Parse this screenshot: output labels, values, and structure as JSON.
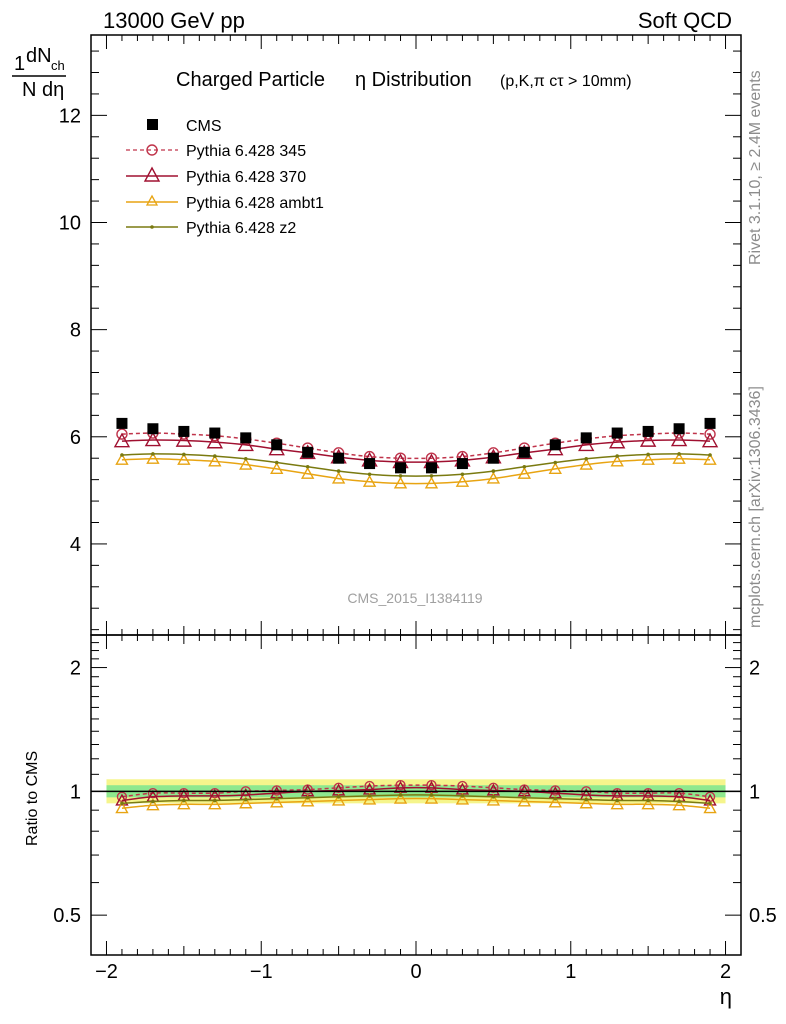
{
  "header": {
    "left": "13000 GeV pp",
    "right": "Soft QCD"
  },
  "side": {
    "rivet": "Rivet 3.1.10, ≥ 2.4M events",
    "mcplots": "mcplots.cern.ch [arXiv:1306.3436]"
  },
  "chart_data": {
    "type": "line",
    "title": "Charged Particle η Distribution",
    "title_main": "Charged Particle",
    "title_eta": "η Distribution",
    "title_note": "(p,K,π cτ > 10mm)",
    "watermark": "CMS_2015_I1384119",
    "ylabel_num": "dN",
    "ylabel_sub": "ch",
    "ylabel_den": "N dη",
    "ylabel_one": "1",
    "xlabel": "η",
    "ratio_ylabel": "Ratio to CMS",
    "xlim": [
      -2.1,
      2.1
    ],
    "ylim": [
      2.3,
      13.5
    ],
    "ratio_ylim": [
      0.4,
      2.4
    ],
    "x_ticks": [
      -2,
      -1,
      0,
      1,
      2
    ],
    "x_tick_labels": [
      "−2",
      "−1",
      "0",
      "1",
      "2"
    ],
    "y_ticks": [
      4,
      6,
      8,
      10,
      12
    ],
    "y_tick_labels": [
      "4",
      "6",
      "8",
      "10",
      "12"
    ],
    "ratio_ticks": [
      0.5,
      1,
      2
    ],
    "ratio_tick_labels": [
      "0.5",
      "1",
      "2"
    ],
    "x": [
      -1.9,
      -1.7,
      -1.5,
      -1.3,
      -1.1,
      -0.9,
      -0.7,
      -0.5,
      -0.3,
      -0.1,
      0.1,
      0.3,
      0.5,
      0.7,
      0.9,
      1.1,
      1.3,
      1.5,
      1.7,
      1.9
    ],
    "data": {
      "name": "CMS",
      "values": [
        6.25,
        6.15,
        6.1,
        6.07,
        5.98,
        5.85,
        5.71,
        5.6,
        5.5,
        5.42,
        5.42,
        5.5,
        5.6,
        5.71,
        5.85,
        5.98,
        6.07,
        6.1,
        6.15,
        6.25
      ]
    },
    "series": [
      {
        "name": "Pythia 6.428 345",
        "color": "#c0344b",
        "style": "dashed",
        "marker": "open-circle",
        "values": [
          6.05,
          6.07,
          6.05,
          6.02,
          5.96,
          5.88,
          5.79,
          5.7,
          5.63,
          5.6,
          5.6,
          5.63,
          5.7,
          5.79,
          5.88,
          5.96,
          6.02,
          6.05,
          6.07,
          6.05
        ],
        "ratio": [
          0.97,
          0.99,
          0.99,
          0.99,
          1.0,
          1.005,
          1.01,
          1.02,
          1.03,
          1.035,
          1.035,
          1.03,
          1.02,
          1.01,
          1.005,
          1.0,
          0.99,
          0.99,
          0.99,
          0.97
        ]
      },
      {
        "name": "Pythia 6.428 370",
        "color": "#a01030",
        "style": "solid",
        "marker": "open-triangle",
        "values": [
          5.92,
          5.94,
          5.93,
          5.9,
          5.85,
          5.77,
          5.7,
          5.62,
          5.56,
          5.53,
          5.53,
          5.56,
          5.62,
          5.7,
          5.77,
          5.85,
          5.9,
          5.93,
          5.94,
          5.92
        ],
        "ratio": [
          0.95,
          0.97,
          0.975,
          0.975,
          0.98,
          0.99,
          1.0,
          1.005,
          1.01,
          1.02,
          1.02,
          1.01,
          1.005,
          1.0,
          0.99,
          0.98,
          0.975,
          0.975,
          0.97,
          0.95
        ]
      },
      {
        "name": "Pythia 6.428 ambt1",
        "color": "#e8a412",
        "style": "solid",
        "marker": "open-triangle",
        "values": [
          5.57,
          5.59,
          5.57,
          5.54,
          5.48,
          5.4,
          5.31,
          5.22,
          5.16,
          5.13,
          5.13,
          5.16,
          5.22,
          5.31,
          5.4,
          5.48,
          5.54,
          5.57,
          5.59,
          5.57
        ],
        "ratio": [
          0.91,
          0.925,
          0.93,
          0.93,
          0.935,
          0.94,
          0.945,
          0.95,
          0.955,
          0.96,
          0.96,
          0.955,
          0.95,
          0.945,
          0.94,
          0.935,
          0.93,
          0.93,
          0.925,
          0.91
        ]
      },
      {
        "name": "Pythia 6.428 z2",
        "color": "#7a7a10",
        "style": "solid",
        "marker": "dot",
        "values": [
          5.66,
          5.68,
          5.67,
          5.64,
          5.59,
          5.52,
          5.44,
          5.36,
          5.3,
          5.27,
          5.27,
          5.3,
          5.36,
          5.44,
          5.52,
          5.59,
          5.64,
          5.67,
          5.68,
          5.66
        ],
        "ratio": [
          0.935,
          0.945,
          0.95,
          0.95,
          0.955,
          0.96,
          0.965,
          0.97,
          0.975,
          0.98,
          0.98,
          0.975,
          0.97,
          0.965,
          0.96,
          0.955,
          0.95,
          0.95,
          0.945,
          0.935
        ]
      }
    ],
    "band_colors": {
      "outer": "#f5f58c",
      "inner": "#8ee88e"
    },
    "grid": false,
    "legend_position": "top-left"
  }
}
